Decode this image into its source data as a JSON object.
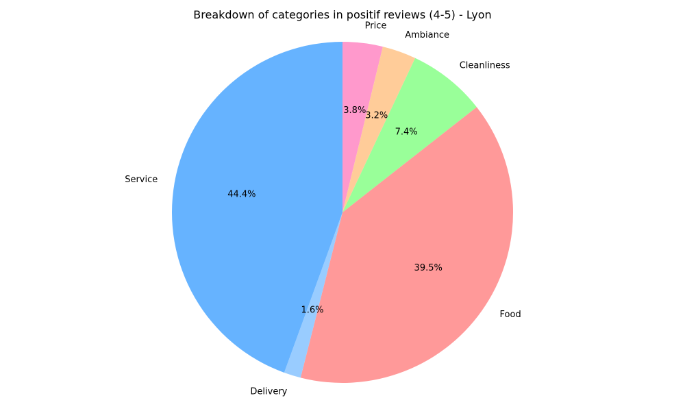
{
  "chart_data": {
    "type": "pie",
    "title": "Breakdown of categories in positif reviews (4-5) - Lyon",
    "slices": [
      {
        "label": "Price",
        "value": 3.8,
        "pct_label": "3.8%",
        "color": "#ff99cc"
      },
      {
        "label": "Ambiance",
        "value": 3.2,
        "pct_label": "3.2%",
        "color": "#ffcc99"
      },
      {
        "label": "Cleanliness",
        "value": 7.4,
        "pct_label": "7.4%",
        "color": "#99ff99"
      },
      {
        "label": "Food",
        "value": 39.5,
        "pct_label": "39.5%",
        "color": "#ff9999"
      },
      {
        "label": "Delivery",
        "value": 1.6,
        "pct_label": "1.6%",
        "color": "#99ccff"
      },
      {
        "label": "Service",
        "value": 44.4,
        "pct_label": "44.4%",
        "color": "#66b3ff"
      }
    ],
    "start_angle_deg": 90,
    "direction": "clockwise"
  }
}
